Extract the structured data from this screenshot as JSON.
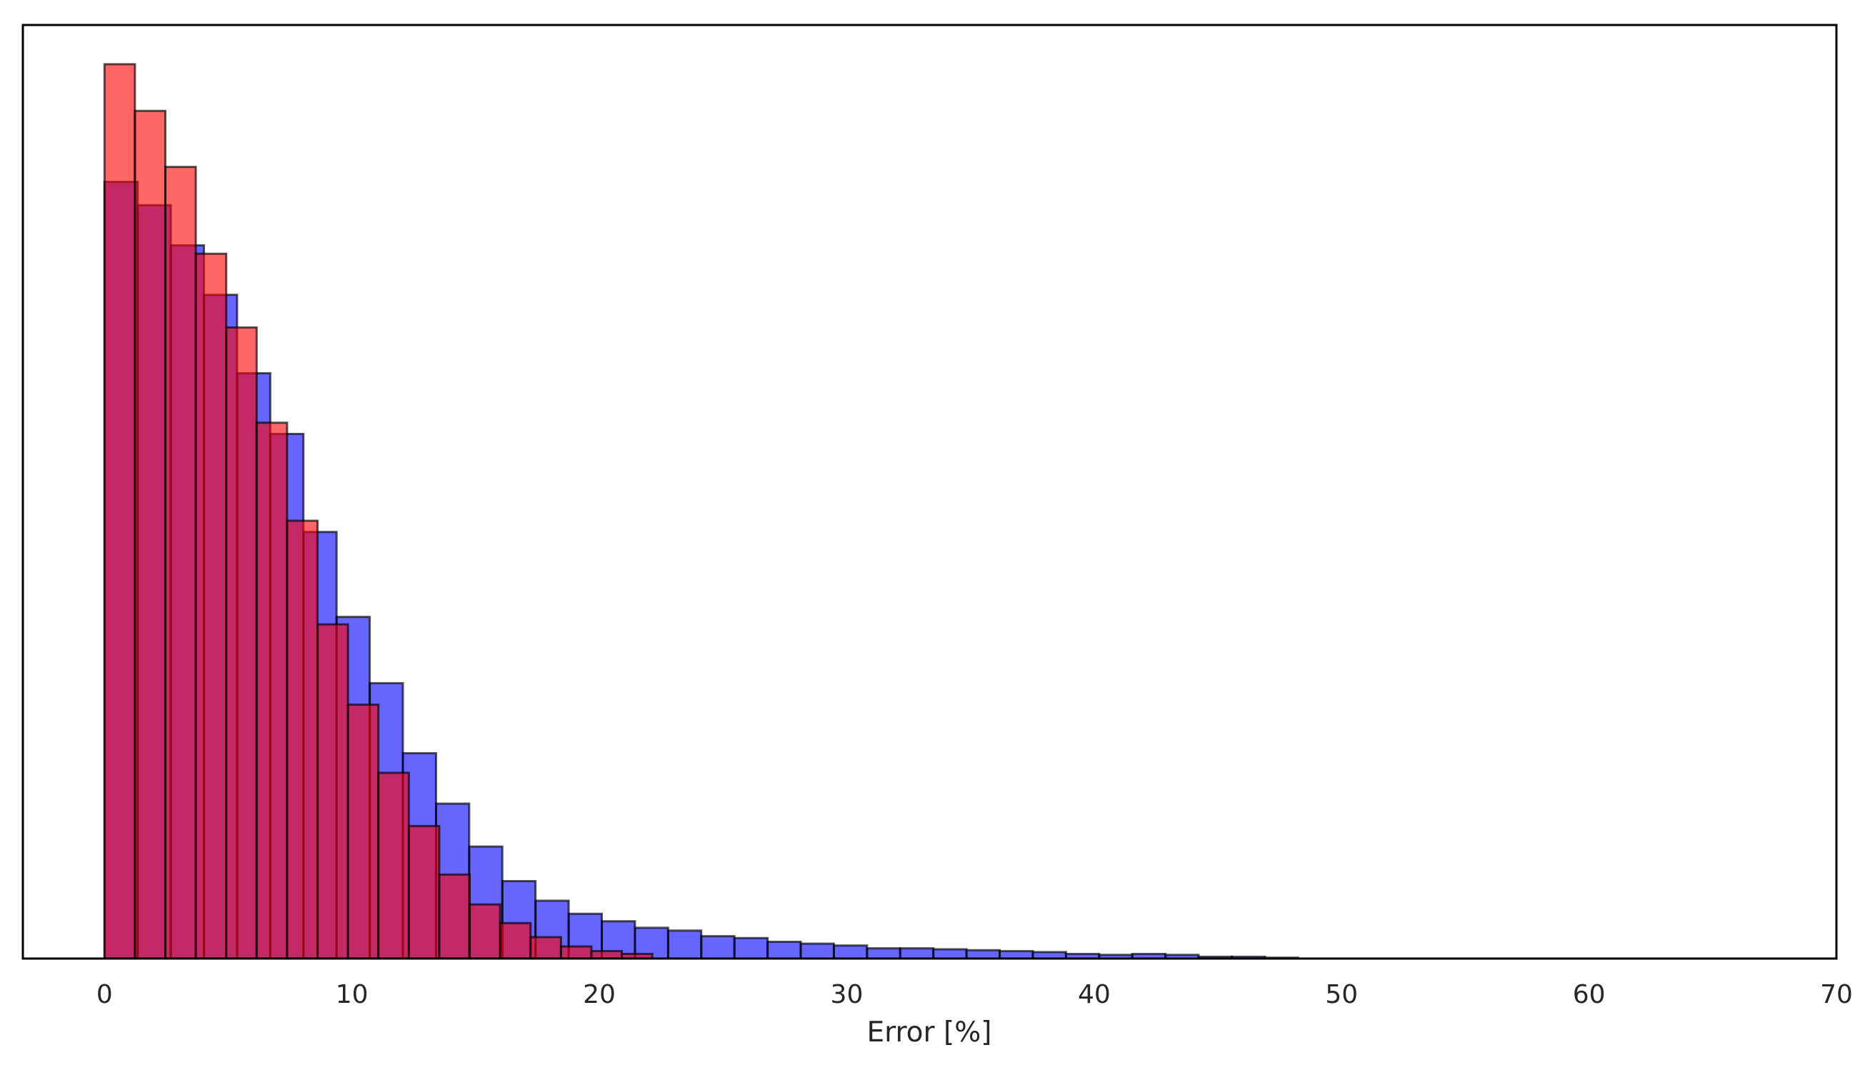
{
  "chart_data": {
    "type": "bar",
    "title": "",
    "xlabel": "Error [%]",
    "ylabel": "",
    "xlim": [
      -3.3,
      70
    ],
    "xticks": [
      0,
      10,
      20,
      30,
      40,
      50,
      60,
      70
    ],
    "xtick_labels": [
      "0",
      "10",
      "20",
      "30",
      "40",
      "50",
      "60",
      "70"
    ],
    "ylim": [
      0,
      1.0
    ],
    "yticks_shown": false,
    "grid": false,
    "legend": "none",
    "series": [
      {
        "color": "#0000ff",
        "alpha": 0.6,
        "bins_x": [
          0,
          1.34,
          2.68,
          4.02,
          5.36,
          6.7,
          8.04,
          9.38,
          10.72,
          12.06,
          13.4,
          14.74,
          16.08,
          17.42,
          18.76,
          20.1,
          21.44,
          22.78,
          24.12,
          25.46,
          26.8,
          28.14,
          29.48,
          30.82,
          32.16,
          33.5,
          34.84,
          36.18,
          37.52,
          38.86,
          40.2,
          41.54,
          42.88,
          44.22,
          45.56,
          46.9,
          48.24
        ],
        "values": [
          0.832,
          0.807,
          0.764,
          0.711,
          0.627,
          0.562,
          0.457,
          0.366,
          0.295,
          0.22,
          0.166,
          0.12,
          0.083,
          0.062,
          0.048,
          0.04,
          0.033,
          0.03,
          0.024,
          0.022,
          0.018,
          0.016,
          0.014,
          0.011,
          0.011,
          0.01,
          0.009,
          0.008,
          0.007,
          0.005,
          0.004,
          0.005,
          0.004,
          0.002,
          0.002,
          0.001
        ]
      },
      {
        "color": "#ff0000",
        "alpha": 0.6,
        "bins_x": [
          0,
          1.23,
          2.46,
          3.69,
          4.92,
          6.15,
          7.38,
          8.61,
          9.84,
          11.07,
          12.3,
          13.53,
          14.76,
          15.99,
          17.22,
          18.45,
          19.68,
          20.91,
          22.14
        ],
        "values": [
          0.958,
          0.908,
          0.848,
          0.755,
          0.676,
          0.574,
          0.469,
          0.358,
          0.272,
          0.199,
          0.142,
          0.09,
          0.058,
          0.038,
          0.023,
          0.013,
          0.008,
          0.005
        ]
      }
    ]
  }
}
